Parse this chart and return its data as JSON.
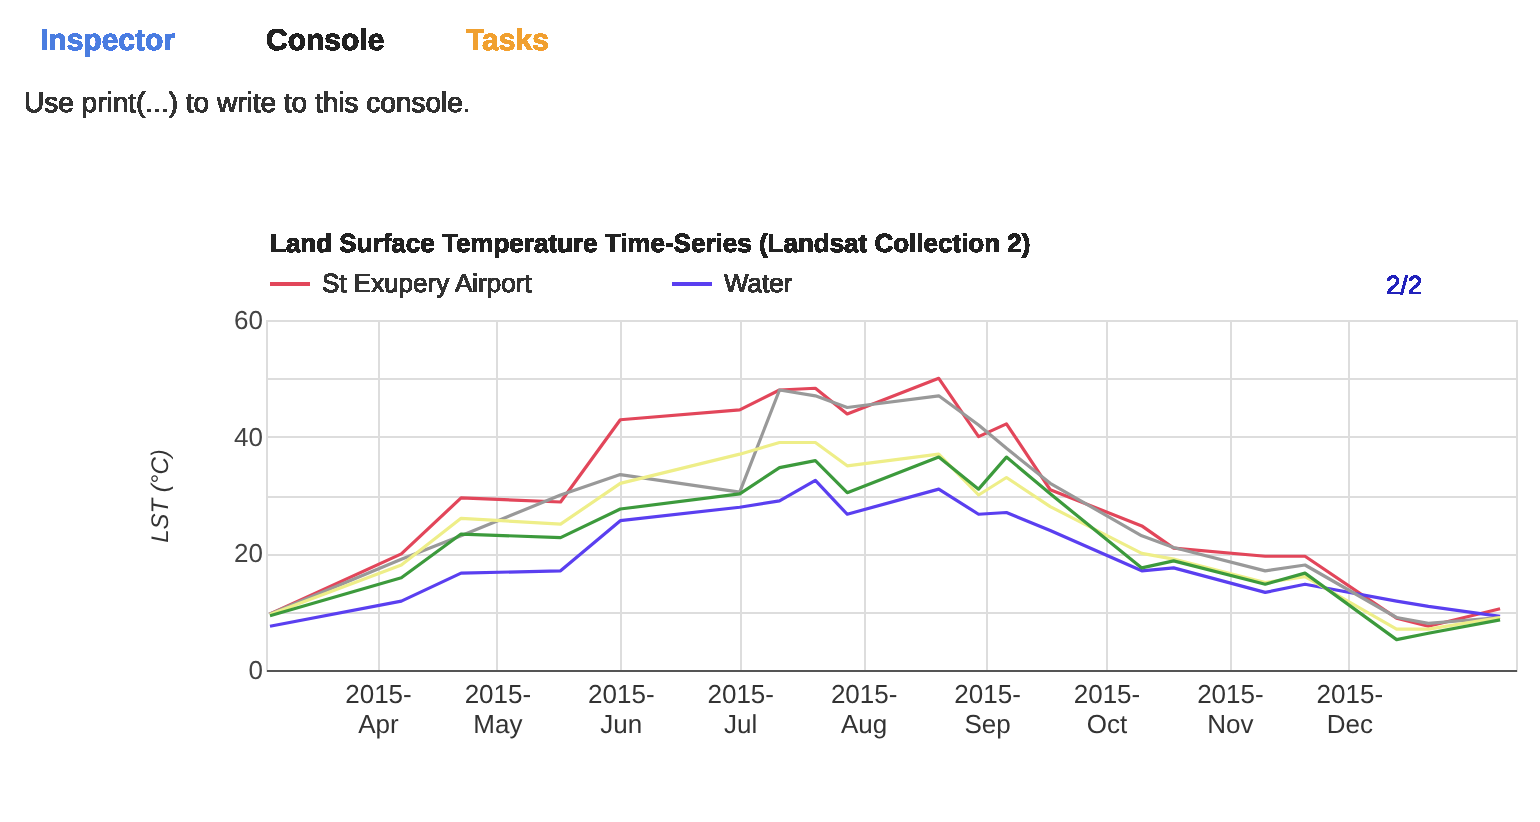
{
  "chart_data": {
    "type": "line",
    "title": "Land Surface Temperature Time-Series (Landsat Collection 2)",
    "ylabel": "LST (°C)",
    "x": [
      "2015-03-05",
      "2015-04-07",
      "2015-04-22",
      "2015-05-17",
      "2015-06-01",
      "2015-07-01",
      "2015-07-11",
      "2015-07-20",
      "2015-07-28",
      "2015-08-20",
      "2015-08-30",
      "2015-09-06",
      "2015-09-17",
      "2015-10-10",
      "2015-10-18",
      "2015-11-10",
      "2015-11-20",
      "2015-12-13",
      "2015-12-21",
      "2016-01-08"
    ],
    "series": [
      {
        "name": "St Exupery Airport",
        "color": "#e2465a",
        "values": [
          9.6,
          19.9,
          29.5,
          28.8,
          42.9,
          44.6,
          48,
          48.3,
          43.9,
          50,
          40,
          42.2,
          30.9,
          24.7,
          20.9,
          19.5,
          19.5,
          8.9,
          7.5,
          10.5
        ]
      },
      {
        "name": "Water",
        "color": "#5a3ff0",
        "values": [
          7.5,
          11.8,
          16.6,
          17,
          25.6,
          27.9,
          29,
          32.5,
          26.7,
          31,
          26.7,
          27,
          23.9,
          17,
          17.5,
          13.3,
          14.7,
          11.8,
          10.9,
          9.2
        ]
      },
      {
        "color": "#999999",
        "values": [
          9.6,
          19,
          23,
          30,
          33.5,
          30.5,
          48,
          47,
          45,
          47,
          42,
          38,
          32,
          23,
          21,
          17,
          18,
          9,
          8,
          9
        ]
      },
      {
        "color": "#eeee88",
        "values": [
          9.5,
          18,
          26,
          25,
          32,
          37,
          39,
          39,
          35,
          37,
          30,
          33,
          28,
          20,
          19,
          15,
          16,
          7,
          7,
          9
        ]
      },
      {
        "color": "#3c9a3c",
        "values": [
          9.3,
          15.8,
          23.3,
          22.7,
          27.6,
          30.2,
          34.7,
          35.9,
          30.4,
          36.5,
          31,
          36.5,
          30.2,
          17.5,
          18.7,
          14.7,
          16.6,
          5.2,
          6.3,
          8.6
        ]
      }
    ],
    "xlim": [
      "2015-03-04",
      "2016-01-12"
    ],
    "xticks": [
      {
        "value": "2015-04-01",
        "label": "2015-\nApr"
      },
      {
        "value": "2015-05-01",
        "label": "2015-\nMay"
      },
      {
        "value": "2015-06-01",
        "label": "2015-\nJun"
      },
      {
        "value": "2015-07-01",
        "label": "2015-\nJul"
      },
      {
        "value": "2015-08-01",
        "label": "2015-\nAug"
      },
      {
        "value": "2015-09-01",
        "label": "2015-\nSep"
      },
      {
        "value": "2015-10-01",
        "label": "2015-\nOct"
      },
      {
        "value": "2015-11-01",
        "label": "2015-\nNov"
      },
      {
        "value": "2015-12-01",
        "label": "2015-\nDec"
      }
    ],
    "ylim": [
      0,
      60
    ],
    "yticks": [
      0,
      {
        "value": 10,
        "label": null
      },
      20,
      {
        "value": 30,
        "label": null
      },
      40,
      {
        "value": 50,
        "label": null
      },
      60
    ],
    "grid": true,
    "legend": "top",
    "marker": "none",
    "line_style": "solid",
    "annotations": [
      "Inspector",
      "Console",
      "Tasks",
      "Use print(...) to write to this console.",
      "2/2"
    ]
  }
}
